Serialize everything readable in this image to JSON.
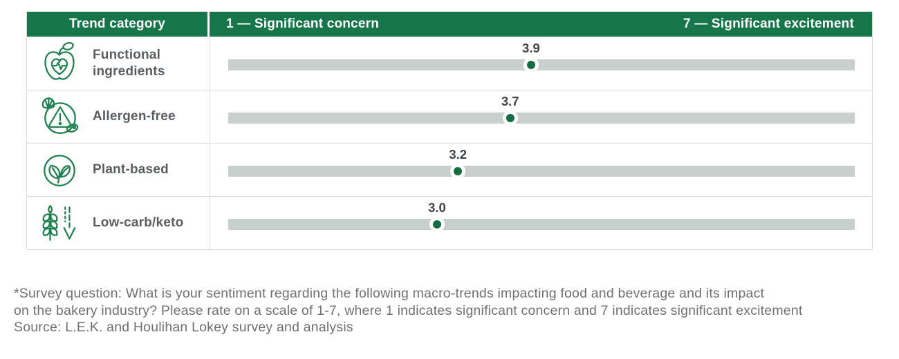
{
  "header": {
    "trend_category": "Trend category",
    "scale_left": "1 — Significant concern",
    "scale_right": "7 — Significant excitement"
  },
  "rows": [
    {
      "label": "Functional ingredients",
      "icon": "apple-heart-pulse-icon",
      "value_label": "3.9"
    },
    {
      "label": "Allergen-free",
      "icon": "allergen-warning-icon",
      "value_label": "3.7"
    },
    {
      "label": "Plant-based",
      "icon": "plant-leaves-icon",
      "value_label": "3.2"
    },
    {
      "label": "Low-carb/keto",
      "icon": "wheat-down-arrow-icon",
      "value_label": "3.0"
    }
  ],
  "chart_data": {
    "type": "scatter",
    "title": "",
    "categories": [
      "Functional ingredients",
      "Allergen-free",
      "Plant-based",
      "Low-carb/keto"
    ],
    "values": [
      3.9,
      3.7,
      3.2,
      3.0
    ],
    "scale": {
      "min": 1,
      "max": 7,
      "min_label": "1 — Significant concern",
      "max_label": "7 — Significant excitement"
    },
    "legend": "none",
    "grid": false
  },
  "footnote": {
    "line1": "*Survey question: What is your sentiment regarding the following macro-trends impacting food and beverage and its impact",
    "line2": "on the bakery industry? Please rate on a scale of 1-7, where 1 indicates significant concern and 7 indicates significant excitement",
    "line3": "Source: L.E.K. and Houlihan Lokey survey and analysis"
  },
  "colors": {
    "header_green": "#17754a",
    "dot_green": "#146c40",
    "icon_green": "#1f8150",
    "bar_gray": "#c9cfcd",
    "border_gray": "#dadedb",
    "label_gray": "#595e62",
    "footnote_gray": "#6d7175"
  }
}
